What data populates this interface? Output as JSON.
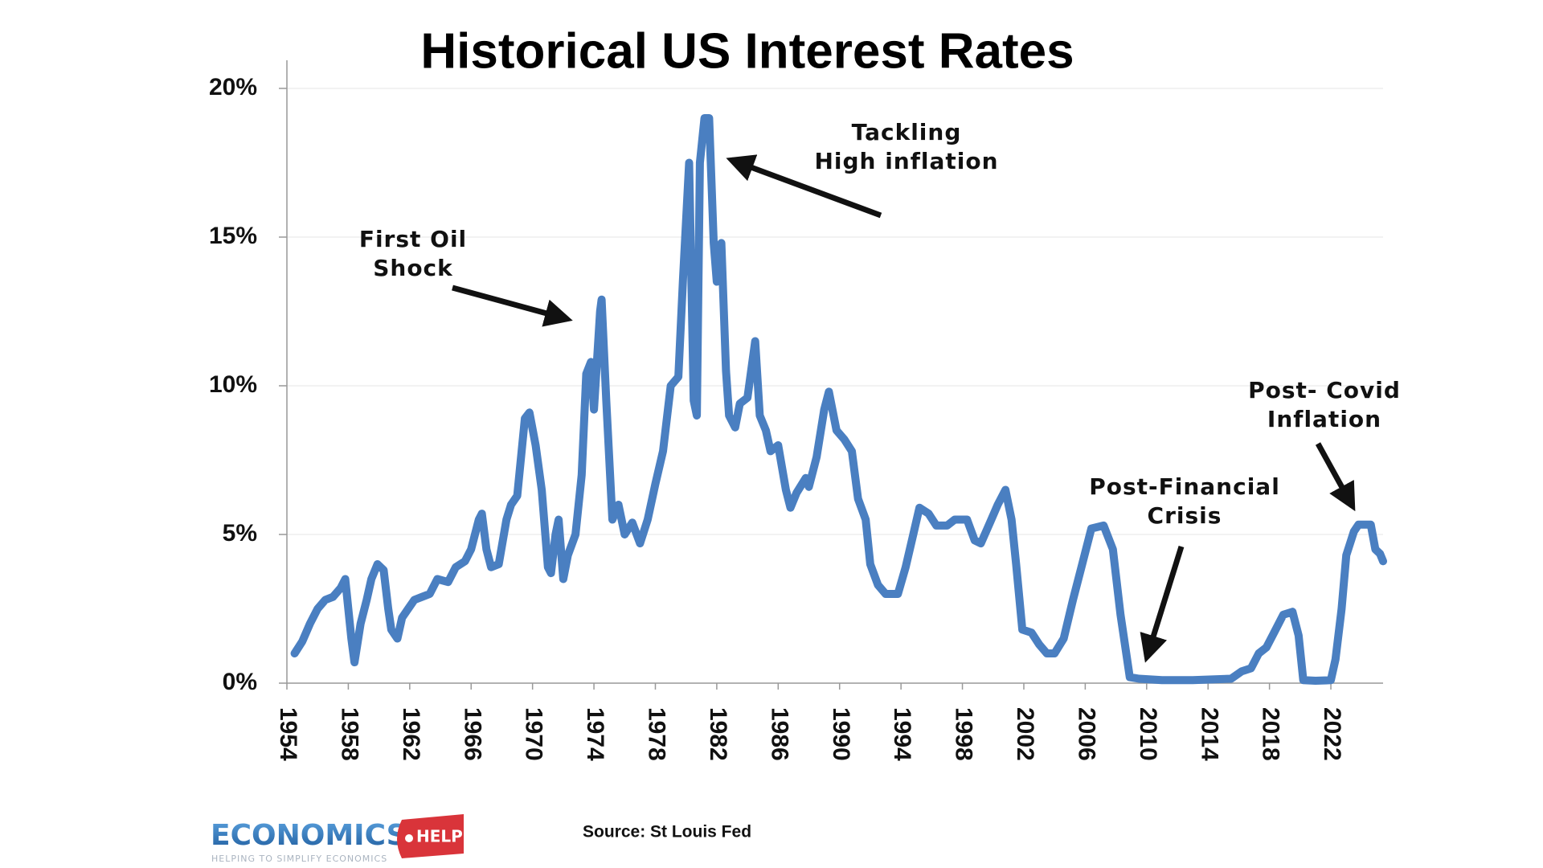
{
  "chart_data": {
    "type": "line",
    "title": "Historical US Interest Rates",
    "x": [
      1954.5,
      1955,
      1955.5,
      1956,
      1956.5,
      1957,
      1957.5,
      1957.8,
      1958.2,
      1958.4,
      1958.8,
      1959.2,
      1959.5,
      1959.9,
      1960.3,
      1960.6,
      1960.8,
      1961.2,
      1961.5,
      1961.9,
      1962.3,
      1962.8,
      1963.3,
      1963.8,
      1964.5,
      1965,
      1965.6,
      1966,
      1966.5,
      1966.7,
      1967,
      1967.3,
      1967.8,
      1968.3,
      1968.6,
      1969,
      1969.5,
      1969.8,
      1970.2,
      1970.6,
      1971,
      1971.2,
      1971.5,
      1971.7,
      1972,
      1972.3,
      1972.8,
      1973.2,
      1973.5,
      1973.8,
      1974,
      1974.4,
      1974.5,
      1974.8,
      1975.2,
      1975.6,
      1976,
      1976.5,
      1977,
      1977.5,
      1978,
      1978.5,
      1979,
      1979.5,
      1979.8,
      1980.2,
      1980.5,
      1980.7,
      1980.9,
      1981.2,
      1981.5,
      1981.8,
      1982,
      1982.3,
      1982.6,
      1982.8,
      1983.2,
      1983.5,
      1984,
      1984.5,
      1984.8,
      1985.2,
      1985.5,
      1986,
      1986.5,
      1986.8,
      1987.2,
      1987.8,
      1988,
      1988.5,
      1989,
      1989.3,
      1989.8,
      1990.3,
      1990.8,
      1991.2,
      1991.7,
      1992,
      1992.5,
      1993,
      1993.8,
      1994.3,
      1994.8,
      1995.2,
      1995.8,
      1996.3,
      1997,
      1997.5,
      1998.3,
      1998.8,
      1999.2,
      1999.8,
      2000.3,
      2000.8,
      2001.2,
      2001.5,
      2001.9,
      2002.5,
      2003,
      2003.5,
      2004,
      2004.6,
      2005.2,
      2005.8,
      2006.4,
      2007.2,
      2007.8,
      2008.3,
      2008.9,
      2009.5,
      2011,
      2013,
      2015.5,
      2016.2,
      2016.8,
      2017.3,
      2017.8,
      2018.3,
      2018.9,
      2019.5,
      2019.9,
      2020.2,
      2021,
      2022,
      2022.3,
      2022.7,
      2023,
      2023.5,
      2023.8,
      2024.6,
      2024.9,
      2025.2,
      2025.4
    ],
    "series": [
      {
        "color": "#4a7fc1",
        "values": [
          1.0,
          1.4,
          2.0,
          2.5,
          2.8,
          2.9,
          3.2,
          3.5,
          1.5,
          0.7,
          2.0,
          2.8,
          3.5,
          4.0,
          3.8,
          2.5,
          1.8,
          1.5,
          2.2,
          2.5,
          2.8,
          2.9,
          3.0,
          3.5,
          3.4,
          3.9,
          4.1,
          4.5,
          5.5,
          5.7,
          4.5,
          3.9,
          4.0,
          5.5,
          6.0,
          6.3,
          8.9,
          9.1,
          8.0,
          6.5,
          3.9,
          3.7,
          5.0,
          5.5,
          3.5,
          4.3,
          5.0,
          7.0,
          10.4,
          10.8,
          9.2,
          12.5,
          12.9,
          9.5,
          5.5,
          6.0,
          5.0,
          5.4,
          4.7,
          5.5,
          6.7,
          7.8,
          10.0,
          10.3,
          13.6,
          17.5,
          9.5,
          9.0,
          17.5,
          19.0,
          19.0,
          14.8,
          13.5,
          14.8,
          10.5,
          9.0,
          8.6,
          9.4,
          9.6,
          11.5,
          9.0,
          8.5,
          7.8,
          8.0,
          6.5,
          5.9,
          6.4,
          6.9,
          6.6,
          7.6,
          9.2,
          9.8,
          8.5,
          8.2,
          7.8,
          6.2,
          5.5,
          4.0,
          3.3,
          3.0,
          3.0,
          3.9,
          5.0,
          5.9,
          5.7,
          5.3,
          5.3,
          5.5,
          5.5,
          4.8,
          4.7,
          5.4,
          6.0,
          6.5,
          5.5,
          4.0,
          1.8,
          1.7,
          1.3,
          1.0,
          1.0,
          1.5,
          2.8,
          4.0,
          5.2,
          5.3,
          4.5,
          2.3,
          0.2,
          0.15,
          0.1,
          0.1,
          0.15,
          0.4,
          0.5,
          1.0,
          1.2,
          1.7,
          2.3,
          2.4,
          1.6,
          0.1,
          0.08,
          0.1,
          0.8,
          2.5,
          4.3,
          5.1,
          5.33,
          5.33,
          4.5,
          4.35,
          4.1
        ]
      }
    ],
    "xlim": [
      1954,
      2025.4
    ],
    "xticks": [
      1954,
      1958,
      1962,
      1966,
      1970,
      1974,
      1978,
      1982,
      1986,
      1990,
      1994,
      1998,
      2002,
      2006,
      2010,
      2014,
      2018,
      2022
    ],
    "ylim": [
      0,
      20
    ],
    "yticks": [
      {
        "value": 0,
        "label": "0%"
      },
      {
        "value": 5,
        "label": "5%"
      },
      {
        "value": 10,
        "label": "10%"
      },
      {
        "value": 15,
        "label": "15%"
      },
      {
        "value": 20,
        "label": "20%"
      }
    ],
    "grid": true,
    "annotations": [
      {
        "lines": [
          "First Oil",
          "Shock"
        ]
      },
      {
        "lines": [
          "Tackling",
          "High inflation"
        ]
      },
      {
        "lines": [
          "Post-Financial",
          "Crisis"
        ]
      },
      {
        "lines": [
          "Post- Covid",
          "Inflation"
        ]
      }
    ],
    "source": "Source: St Louis Fed",
    "logo": {
      "name": "ECONOMICS",
      "badge": "HELP",
      "tagline": "HELPING TO SIMPLIFY ECONOMICS"
    }
  }
}
